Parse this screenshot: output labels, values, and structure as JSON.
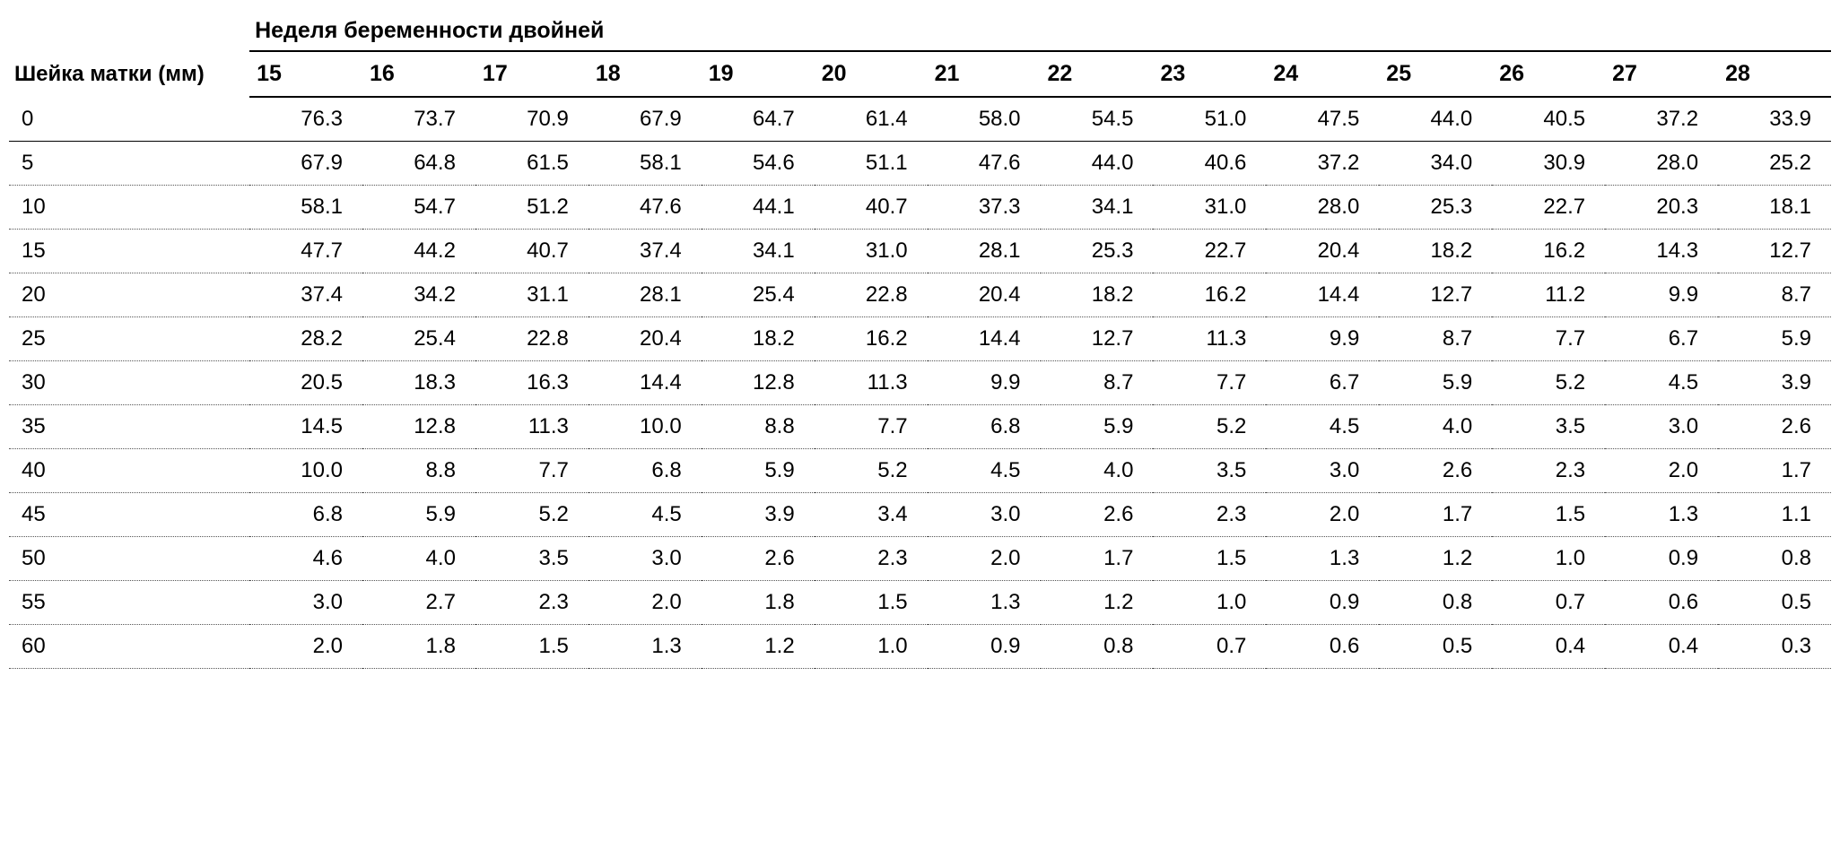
{
  "table": {
    "type": "table",
    "background_color": "#ffffff",
    "text_color": "#000000",
    "font_family": "Verdana, Arial, sans-serif",
    "header_fontsize": 25,
    "cell_fontsize": 24,
    "header_fontweight": "bold",
    "solid_border_color": "#000000",
    "dotted_border_color": "#555555",
    "row_header_label": "Шейка матки (мм)",
    "spanning_header_label": "Неделя беременности двойней",
    "week_columns": [
      "15",
      "16",
      "17",
      "18",
      "19",
      "20",
      "21",
      "22",
      "23",
      "24",
      "25",
      "26",
      "27",
      "28"
    ],
    "rows": [
      {
        "label": "0",
        "values": [
          "76.3",
          "73.7",
          "70.9",
          "67.9",
          "64.7",
          "61.4",
          "58.0",
          "54.5",
          "51.0",
          "47.5",
          "44.0",
          "40.5",
          "37.2",
          "33.9"
        ]
      },
      {
        "label": "5",
        "values": [
          "67.9",
          "64.8",
          "61.5",
          "58.1",
          "54.6",
          "51.1",
          "47.6",
          "44.0",
          "40.6",
          "37.2",
          "34.0",
          "30.9",
          "28.0",
          "25.2"
        ]
      },
      {
        "label": "10",
        "values": [
          "58.1",
          "54.7",
          "51.2",
          "47.6",
          "44.1",
          "40.7",
          "37.3",
          "34.1",
          "31.0",
          "28.0",
          "25.3",
          "22.7",
          "20.3",
          "18.1"
        ]
      },
      {
        "label": "15",
        "values": [
          "47.7",
          "44.2",
          "40.7",
          "37.4",
          "34.1",
          "31.0",
          "28.1",
          "25.3",
          "22.7",
          "20.4",
          "18.2",
          "16.2",
          "14.3",
          "12.7"
        ]
      },
      {
        "label": "20",
        "values": [
          "37.4",
          "34.2",
          "31.1",
          "28.1",
          "25.4",
          "22.8",
          "20.4",
          "18.2",
          "16.2",
          "14.4",
          "12.7",
          "11.2",
          "9.9",
          "8.7"
        ]
      },
      {
        "label": "25",
        "values": [
          "28.2",
          "25.4",
          "22.8",
          "20.4",
          "18.2",
          "16.2",
          "14.4",
          "12.7",
          "11.3",
          "9.9",
          "8.7",
          "7.7",
          "6.7",
          "5.9"
        ]
      },
      {
        "label": "30",
        "values": [
          "20.5",
          "18.3",
          "16.3",
          "14.4",
          "12.8",
          "11.3",
          "9.9",
          "8.7",
          "7.7",
          "6.7",
          "5.9",
          "5.2",
          "4.5",
          "3.9"
        ]
      },
      {
        "label": "35",
        "values": [
          "14.5",
          "12.8",
          "11.3",
          "10.0",
          "8.8",
          "7.7",
          "6.8",
          "5.9",
          "5.2",
          "4.5",
          "4.0",
          "3.5",
          "3.0",
          "2.6"
        ]
      },
      {
        "label": "40",
        "values": [
          "10.0",
          "8.8",
          "7.7",
          "6.8",
          "5.9",
          "5.2",
          "4.5",
          "4.0",
          "3.5",
          "3.0",
          "2.6",
          "2.3",
          "2.0",
          "1.7"
        ]
      },
      {
        "label": "45",
        "values": [
          "6.8",
          "5.9",
          "5.2",
          "4.5",
          "3.9",
          "3.4",
          "3.0",
          "2.6",
          "2.3",
          "2.0",
          "1.7",
          "1.5",
          "1.3",
          "1.1"
        ]
      },
      {
        "label": "50",
        "values": [
          "4.6",
          "4.0",
          "3.5",
          "3.0",
          "2.6",
          "2.3",
          "2.0",
          "1.7",
          "1.5",
          "1.3",
          "1.2",
          "1.0",
          "0.9",
          "0.8"
        ]
      },
      {
        "label": "55",
        "values": [
          "3.0",
          "2.7",
          "2.3",
          "2.0",
          "1.8",
          "1.5",
          "1.3",
          "1.2",
          "1.0",
          "0.9",
          "0.8",
          "0.7",
          "0.6",
          "0.5"
        ]
      },
      {
        "label": "60",
        "values": [
          "2.0",
          "1.8",
          "1.5",
          "1.3",
          "1.2",
          "1.0",
          "0.9",
          "0.8",
          "0.7",
          "0.6",
          "0.5",
          "0.4",
          "0.4",
          "0.3"
        ]
      }
    ]
  }
}
